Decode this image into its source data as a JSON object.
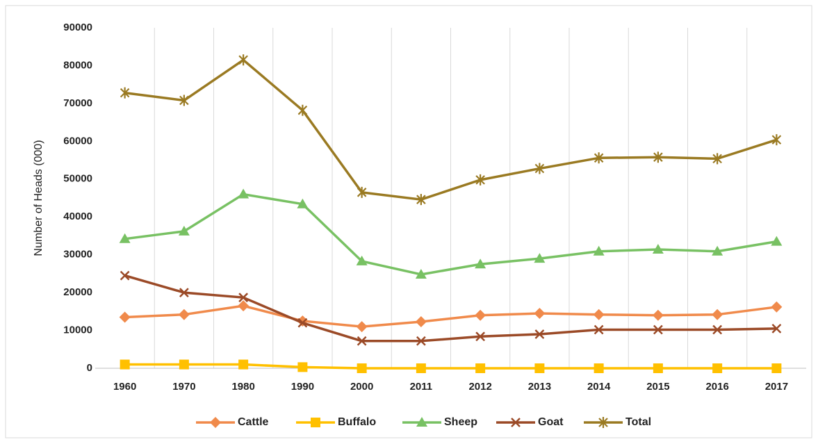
{
  "chart_data": {
    "type": "line",
    "y_label": "Number of Heads (000)",
    "categories": [
      "1960",
      "1970",
      "1980",
      "1990",
      "2000",
      "2011",
      "2012",
      "2013",
      "2014",
      "2015",
      "2016",
      "2017"
    ],
    "series": [
      {
        "name": "Cattle",
        "color": "#f08a4b",
        "marker": "diamond",
        "values": [
          13500,
          14200,
          16500,
          12500,
          11000,
          12300,
          14000,
          14500,
          14200,
          14000,
          14200,
          16200
        ]
      },
      {
        "name": "Buffalo",
        "color": "#ffc000",
        "marker": "square",
        "values": [
          1000,
          1000,
          1000,
          300,
          0,
          0,
          0,
          0,
          0,
          0,
          0,
          0
        ]
      },
      {
        "name": "Sheep",
        "color": "#78c163",
        "marker": "triangle",
        "values": [
          34200,
          36200,
          46000,
          43400,
          28300,
          24800,
          27500,
          29000,
          30900,
          31400,
          30900,
          33500
        ]
      },
      {
        "name": "Goat",
        "color": "#9b4a27",
        "marker": "x",
        "values": [
          24500,
          20000,
          18700,
          12000,
          7200,
          7200,
          8400,
          9000,
          10200,
          10200,
          10200,
          10500
        ]
      },
      {
        "name": "Total",
        "color": "#9a7a22",
        "marker": "asterisk",
        "values": [
          72800,
          70800,
          81500,
          68200,
          46500,
          44600,
          49800,
          52800,
          55600,
          55800,
          55400,
          60400
        ]
      }
    ],
    "ylim": [
      0,
      90000
    ],
    "yticks": [
      0,
      10000,
      20000,
      30000,
      40000,
      50000,
      60000,
      70000,
      80000,
      90000
    ],
    "grid": true,
    "legend": "bottom"
  }
}
